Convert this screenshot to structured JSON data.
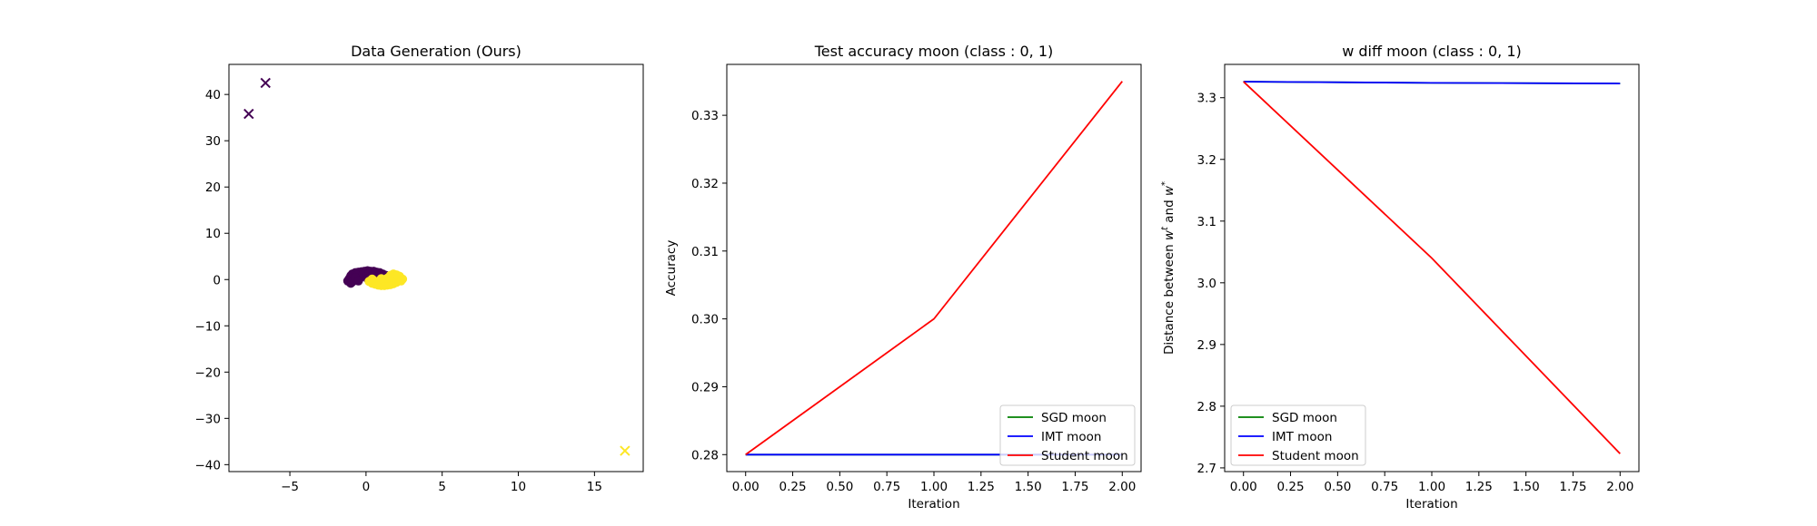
{
  "chart_data": [
    {
      "type": "scatter",
      "title": "Data Generation (Ours)",
      "xlabel": "",
      "ylabel": "",
      "xlim": [
        -9,
        18.2
      ],
      "ylim": [
        -41.5,
        46.5
      ],
      "xticks": [
        -5,
        0,
        5,
        10,
        15
      ],
      "yticks": [
        -40,
        -30,
        -20,
        -10,
        0,
        10,
        20,
        30,
        40
      ],
      "xtick_labels": [
        "−5",
        "0",
        "5",
        "10",
        "15"
      ],
      "ytick_labels": [
        "−40",
        "−30",
        "−20",
        "−10",
        "0",
        "10",
        "20",
        "30",
        "40"
      ],
      "grid": false,
      "colors": {
        "class0": "#440154",
        "class1": "#fde725"
      },
      "series": [
        {
          "marker": "dot",
          "color": "#440154",
          "points": [
            [
              -1.1,
              0.2
            ],
            [
              -1.0,
              0.8
            ],
            [
              -0.9,
              1.2
            ],
            [
              -0.7,
              1.5
            ],
            [
              -0.5,
              1.6
            ],
            [
              -0.3,
              1.7
            ],
            [
              -0.1,
              1.8
            ],
            [
              0.1,
              1.9
            ],
            [
              0.3,
              1.8
            ],
            [
              0.5,
              1.8
            ],
            [
              0.7,
              1.6
            ],
            [
              0.9,
              1.5
            ],
            [
              1.1,
              1.2
            ],
            [
              1.3,
              0.9
            ],
            [
              1.4,
              0.5
            ],
            [
              1.2,
              0.0
            ],
            [
              -1.2,
              -0.3
            ],
            [
              -1.0,
              -0.8
            ],
            [
              -0.8,
              -0.2
            ],
            [
              -0.6,
              0.9
            ],
            [
              -0.4,
              0.3
            ],
            [
              -0.2,
              1.1
            ],
            [
              0.0,
              0.6
            ],
            [
              0.2,
              1.3
            ],
            [
              0.4,
              0.9
            ],
            [
              0.6,
              1.2
            ],
            [
              0.8,
              0.7
            ],
            [
              1.0,
              0.4
            ],
            [
              -0.9,
              -0.5
            ],
            [
              -0.7,
              0.4
            ],
            [
              -0.5,
              -0.3
            ],
            [
              0.1,
              0.2
            ],
            [
              0.3,
              0.5
            ],
            [
              0.7,
              0.1
            ]
          ]
        },
        {
          "marker": "dot",
          "color": "#fde725",
          "points": [
            [
              0.2,
              -0.4
            ],
            [
              0.4,
              -0.8
            ],
            [
              0.6,
              -1.0
            ],
            [
              0.8,
              -1.2
            ],
            [
              1.0,
              -1.3
            ],
            [
              1.2,
              -1.3
            ],
            [
              1.4,
              -1.2
            ],
            [
              1.6,
              -1.1
            ],
            [
              1.8,
              -0.9
            ],
            [
              2.0,
              -0.6
            ],
            [
              2.2,
              -0.2
            ],
            [
              2.3,
              0.3
            ],
            [
              2.2,
              0.7
            ],
            [
              2.0,
              1.0
            ],
            [
              1.8,
              1.2
            ],
            [
              1.6,
              0.9
            ],
            [
              2.4,
              0.1
            ],
            [
              0.5,
              -0.2
            ],
            [
              0.9,
              -0.6
            ],
            [
              1.3,
              -0.7
            ],
            [
              1.7,
              -0.4
            ],
            [
              1.9,
              0.4
            ],
            [
              2.1,
              0.8
            ],
            [
              1.1,
              -0.2
            ],
            [
              0.7,
              -0.5
            ],
            [
              1.5,
              -0.8
            ],
            [
              2.3,
              -0.3
            ],
            [
              1.4,
              0.3
            ],
            [
              0.4,
              0.1
            ],
            [
              1.0,
              0.2
            ]
          ]
        },
        {
          "marker": "x",
          "color": "#440154",
          "points": [
            [
              -6.6,
              42.5
            ],
            [
              -7.7,
              35.8
            ]
          ]
        },
        {
          "marker": "x",
          "color": "#fde725",
          "points": [
            [
              17.0,
              -37.0
            ]
          ]
        }
      ]
    },
    {
      "type": "line",
      "title": "Test accuracy moon (class : 0, 1)",
      "xlabel": "Iteration",
      "ylabel": "Accuracy",
      "xlim": [
        -0.1,
        2.1
      ],
      "ylim": [
        0.2775,
        0.3375
      ],
      "xticks": [
        0.0,
        0.25,
        0.5,
        0.75,
        1.0,
        1.25,
        1.5,
        1.75,
        2.0
      ],
      "yticks": [
        0.28,
        0.29,
        0.3,
        0.31,
        0.32,
        0.33
      ],
      "xtick_labels": [
        "0.00",
        "0.25",
        "0.50",
        "0.75",
        "1.00",
        "1.25",
        "1.50",
        "1.75",
        "2.00"
      ],
      "ytick_labels": [
        "0.28",
        "0.29",
        "0.30",
        "0.31",
        "0.32",
        "0.33"
      ],
      "grid": false,
      "legend": "lower right",
      "x": [
        0,
        1,
        2
      ],
      "series": [
        {
          "name": "SGD moon",
          "color": "#008000",
          "values": [
            0.28,
            0.28,
            0.28
          ]
        },
        {
          "name": "IMT moon",
          "color": "#0000ff",
          "values": [
            0.28,
            0.28,
            0.28
          ]
        },
        {
          "name": "Student moon",
          "color": "#ff0000",
          "values": [
            0.28,
            0.3,
            0.335
          ]
        }
      ]
    },
    {
      "type": "line",
      "title": "w diff moon (class : 0, 1)",
      "xlabel": "Iteration",
      "ylabel": "Distance between w",
      "ylabel_parts": [
        "Distance between ",
        "w",
        "t",
        " and ",
        "w",
        "*"
      ],
      "xlim": [
        -0.1,
        2.1
      ],
      "ylim": [
        2.694,
        3.354
      ],
      "xticks": [
        0.0,
        0.25,
        0.5,
        0.75,
        1.0,
        1.25,
        1.5,
        1.75,
        2.0
      ],
      "yticks": [
        2.7,
        2.8,
        2.9,
        3.0,
        3.1,
        3.2,
        3.3
      ],
      "xtick_labels": [
        "0.00",
        "0.25",
        "0.50",
        "0.75",
        "1.00",
        "1.25",
        "1.50",
        "1.75",
        "2.00"
      ],
      "ytick_labels": [
        "2.7",
        "2.8",
        "2.9",
        "3.0",
        "3.1",
        "3.2",
        "3.3"
      ],
      "grid": false,
      "legend": "lower left",
      "x": [
        0,
        1,
        2
      ],
      "series": [
        {
          "name": "SGD moon",
          "color": "#008000",
          "values": [
            3.326,
            3.324,
            3.323
          ]
        },
        {
          "name": "IMT moon",
          "color": "#0000ff",
          "values": [
            3.326,
            3.324,
            3.323
          ]
        },
        {
          "name": "Student moon",
          "color": "#ff0000",
          "values": [
            3.326,
            3.04,
            2.723
          ]
        }
      ]
    }
  ]
}
